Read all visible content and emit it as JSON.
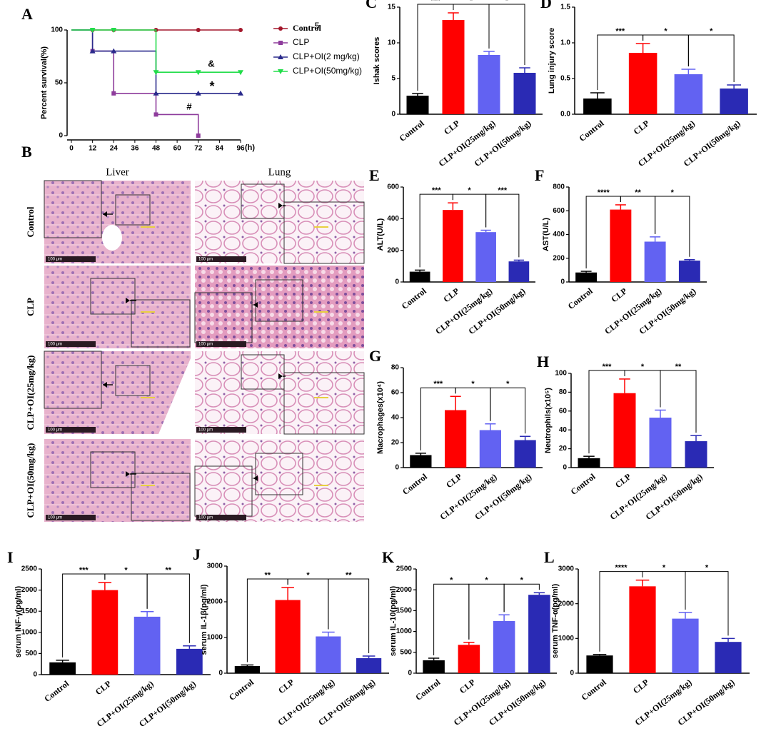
{
  "chart_data": [
    {
      "type": "line",
      "step": true,
      "panel": "A",
      "ylabel": "Percent survival(%)",
      "xlabel": "(h)",
      "x": [
        0,
        12,
        24,
        48,
        72,
        96
      ],
      "xlim": [
        0,
        96
      ],
      "xticks": [
        0,
        12,
        24,
        36,
        48,
        60,
        72,
        84,
        96
      ],
      "ylim": [
        0,
        100
      ],
      "yticks": [
        0,
        50,
        100
      ],
      "series": [
        {
          "name": "Control",
          "color": "#a3172b",
          "marker": "circle",
          "values": [
            100,
            100,
            100,
            100,
            100,
            100
          ]
        },
        {
          "name": "CLP",
          "color": "#8e3c9c",
          "marker": "square",
          "values": [
            100,
            80,
            40,
            20,
            0,
            null
          ]
        },
        {
          "name": "CLP+OI(2  mg/kg)",
          "color": "#2b2b8c",
          "marker": "triangle",
          "values": [
            100,
            80,
            80,
            40,
            40,
            40
          ]
        },
        {
          "name": "CLP+OI(50mg/kg)",
          "color": "#22dd4a",
          "marker": "triangle-down",
          "values": [
            100,
            100,
            100,
            60,
            60,
            60
          ]
        }
      ],
      "annotations": [
        "&",
        "*",
        "#",
        "5"
      ]
    },
    {
      "type": "bar",
      "panel": "C",
      "ylabel": "Ishak scores",
      "categories": [
        "Control",
        "CLP",
        "CLP+OI(25mg/kg)",
        "CLP+OI(50mg/kg)"
      ],
      "colors": [
        "#000000",
        "#ff0000",
        "#6262f2",
        "#2a2ab4"
      ],
      "values": [
        2.6,
        13.2,
        8.3,
        5.8
      ],
      "errors": [
        0.3,
        1.0,
        0.5,
        0.7
      ],
      "ylim": [
        0,
        15
      ],
      "yticks": [
        0,
        5,
        10,
        15
      ],
      "significance": [
        "***",
        "*",
        "*"
      ]
    },
    {
      "type": "bar",
      "panel": "D",
      "ylabel": "Lung injury score",
      "categories": [
        "Control",
        "CLP",
        "CLP+OI(25mg/kg)",
        "CLP+OI(50mg/kg)"
      ],
      "colors": [
        "#000000",
        "#ff0000",
        "#6262f2",
        "#2a2ab4"
      ],
      "values": [
        0.22,
        0.86,
        0.56,
        0.36
      ],
      "errors": [
        0.08,
        0.13,
        0.07,
        0.05
      ],
      "ylim": [
        0,
        1.5
      ],
      "yticks": [
        {
          "value": 0,
          "label": "0.0"
        },
        0.5,
        {
          "value": 1,
          "label": "1.0"
        },
        1.5
      ],
      "significance": [
        "***",
        "*",
        "*"
      ]
    },
    {
      "type": "bar",
      "panel": "E",
      "ylabel": "ALT(U/L)",
      "categories": [
        "Control",
        "CLP",
        "CLP+OI(25mg/kg)",
        "CLP+OI(50mg/kg)"
      ],
      "colors": [
        "#000000",
        "#ff0000",
        "#6262f2",
        "#2a2ab4"
      ],
      "values": [
        65,
        455,
        315,
        130
      ],
      "errors": [
        10,
        45,
        12,
        8
      ],
      "ylim": [
        0,
        600
      ],
      "yticks": [
        0,
        200,
        400,
        600
      ],
      "significance": [
        "***",
        "*",
        "***"
      ]
    },
    {
      "type": "bar",
      "panel": "F",
      "ylabel": "AST(U/L)",
      "categories": [
        "Control",
        "CLP",
        "CLP+OI(25mg/kg)",
        "CLP+OI(50mg/kg)"
      ],
      "colors": [
        "#000000",
        "#ff0000",
        "#6262f2",
        "#2a2ab4"
      ],
      "values": [
        80,
        610,
        340,
        180
      ],
      "errors": [
        10,
        40,
        40,
        8
      ],
      "ylim": [
        0,
        800
      ],
      "yticks": [
        0,
        200,
        400,
        600,
        800
      ],
      "significance": [
        "****",
        "**",
        "*"
      ]
    },
    {
      "type": "bar",
      "panel": "G",
      "ylabel": "Macrophages(x10⁴)",
      "categories": [
        "Control",
        "CLP",
        "CLP+OI(25mg/kg)",
        "CLP+OI(50mg/kg)"
      ],
      "colors": [
        "#000000",
        "#ff0000",
        "#6262f2",
        "#2a2ab4"
      ],
      "values": [
        10,
        46,
        30,
        22
      ],
      "errors": [
        1.5,
        11,
        5,
        3
      ],
      "ylim": [
        0,
        80
      ],
      "yticks": [
        0,
        20,
        40,
        60,
        80
      ],
      "significance": [
        "***",
        "*",
        "*"
      ]
    },
    {
      "type": "bar",
      "panel": "H",
      "ylabel": "Neutrophils(x10⁵)",
      "categories": [
        "Control",
        "CLP",
        "CLP+OI(25mg/kg)",
        "CLP+OI(50mg/kg)"
      ],
      "colors": [
        "#000000",
        "#ff0000",
        "#6262f2",
        "#2a2ab4"
      ],
      "values": [
        10,
        79,
        53,
        28
      ],
      "errors": [
        2,
        15,
        8,
        6
      ],
      "ylim": [
        0,
        100
      ],
      "yticks": [
        0,
        20,
        40,
        60,
        80,
        100
      ],
      "significance": [
        "***",
        "*",
        "**"
      ]
    },
    {
      "type": "bar",
      "panel": "I",
      "ylabel": "serum INF-γ(pg/ml)",
      "categories": [
        "Control",
        "CLP",
        "CLP+OI(25mg/kg)",
        "CLP+OI(50mg/kg)"
      ],
      "colors": [
        "#000000",
        "#ff0000",
        "#6262f2",
        "#2a2ab4"
      ],
      "values": [
        290,
        2000,
        1370,
        610
      ],
      "errors": [
        50,
        180,
        120,
        70
      ],
      "ylim": [
        0,
        2500
      ],
      "yticks": [
        0,
        500,
        1000,
        1500,
        2000,
        2500
      ],
      "significance": [
        "***",
        "*",
        "**"
      ]
    },
    {
      "type": "bar",
      "panel": "J",
      "ylabel": "serum IL-1β(pg/ml)",
      "categories": [
        "Control",
        "CLP",
        "CLP+OI(25mg/kg)",
        "CLP+OI(50mg/kg)"
      ],
      "colors": [
        "#000000",
        "#ff0000",
        "#6262f2",
        "#2a2ab4"
      ],
      "values": [
        200,
        2050,
        1030,
        420
      ],
      "errors": [
        30,
        350,
        120,
        60
      ],
      "ylim": [
        0,
        3000
      ],
      "yticks": [
        0,
        1000,
        2000,
        3000
      ],
      "significance": [
        "**",
        "*",
        "**"
      ]
    },
    {
      "type": "bar",
      "panel": "K",
      "ylabel": "serum IL-10(pg/ml)",
      "categories": [
        "Control",
        "CLP",
        "CLP+OI(25mg/kg)",
        "CLP+OI(50mg/kg)"
      ],
      "colors": [
        "#000000",
        "#ff0000",
        "#6262f2",
        "#2a2ab4"
      ],
      "values": [
        310,
        680,
        1250,
        1880
      ],
      "errors": [
        50,
        60,
        150,
        50
      ],
      "ylim": [
        0,
        2500
      ],
      "yticks": [
        0,
        500,
        1000,
        1500,
        2000,
        2500
      ],
      "significance": [
        "*",
        "*",
        "*"
      ]
    },
    {
      "type": "bar",
      "panel": "L",
      "ylabel": "serum TNF-α(pg/ml)",
      "categories": [
        "Control",
        "CLP",
        "CLP+OI(25mg/kg)",
        "CLP+OI(50mg/kg)"
      ],
      "colors": [
        "#000000",
        "#ff0000",
        "#6262f2",
        "#2a2ab4"
      ],
      "values": [
        510,
        2500,
        1570,
        900
      ],
      "errors": [
        30,
        180,
        180,
        100
      ],
      "ylim": [
        0,
        3000
      ],
      "yticks": [
        0,
        1000,
        2000,
        3000
      ],
      "significance": [
        "****",
        "*",
        "*"
      ]
    }
  ],
  "histology": {
    "panel": "B",
    "columns": [
      "Liver",
      "Lung"
    ],
    "rows": [
      "Control",
      "CLP",
      "CLP+OI(25mg/kg)",
      "CLP+OI(50mg/kg)"
    ],
    "scale_bar": "100 μm"
  }
}
